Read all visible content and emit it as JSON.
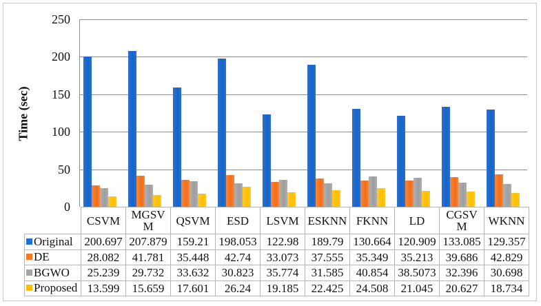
{
  "chart_data": {
    "type": "bar",
    "title": "",
    "xlabel": "",
    "ylabel": "Time (sec)",
    "ylim": [
      0,
      250
    ],
    "yticks": [
      0,
      50,
      100,
      150,
      200,
      250
    ],
    "grid": true,
    "legend_position": "data-table-bottom",
    "categories": [
      "CSVM",
      "MGSVM",
      "QSVM",
      "ESD",
      "LSVM",
      "ESKNN",
      "FKNN",
      "LD",
      "CGSVM",
      "WKNN"
    ],
    "category_display": [
      "CSVM",
      "MGSV\nM",
      "QSVM",
      "ESD",
      "LSVM",
      "ESKNN",
      "FKNN",
      "LD",
      "CGSV\nM",
      "WKNN"
    ],
    "series": [
      {
        "name": "Original",
        "color": "#1f6fd0",
        "values": [
          200.697,
          207.879,
          159.21,
          198.053,
          122.98,
          189.79,
          130.664,
          120.909,
          133.085,
          129.357
        ]
      },
      {
        "name": "DE",
        "color": "#f47a2a",
        "values": [
          28.082,
          41.781,
          35.448,
          42.74,
          33.073,
          37.555,
          35.349,
          35.213,
          39.686,
          42.829
        ]
      },
      {
        "name": "BGWO",
        "color": "#a5a5a5",
        "values": [
          25.239,
          29.732,
          33.632,
          30.823,
          35.774,
          31.585,
          40.854,
          38.5073,
          32.396,
          30.698
        ]
      },
      {
        "name": "Proposed",
        "color": "#ffc000",
        "values": [
          13.599,
          15.659,
          17.601,
          26.24,
          19.185,
          22.425,
          24.508,
          21.045,
          20.627,
          18.734
        ]
      }
    ],
    "table_values": [
      [
        "200.697",
        "207.879",
        "159.21",
        "198.053",
        "122.98",
        "189.79",
        "130.664",
        "120.909",
        "133.085",
        "129.357"
      ],
      [
        "28.082",
        "41.781",
        "35.448",
        "42.74",
        "33.073",
        "37.555",
        "35.349",
        "35.213",
        "39.686",
        "42.829"
      ],
      [
        "25.239",
        "29.732",
        "33.632",
        "30.823",
        "35.774",
        "31.585",
        "40.854",
        "38.5073",
        "32.396",
        "30.698"
      ],
      [
        "13.599",
        "15.659",
        "17.601",
        "26.24",
        "19.185",
        "22.425",
        "24.508",
        "21.045",
        "20.627",
        "18.734"
      ]
    ]
  }
}
